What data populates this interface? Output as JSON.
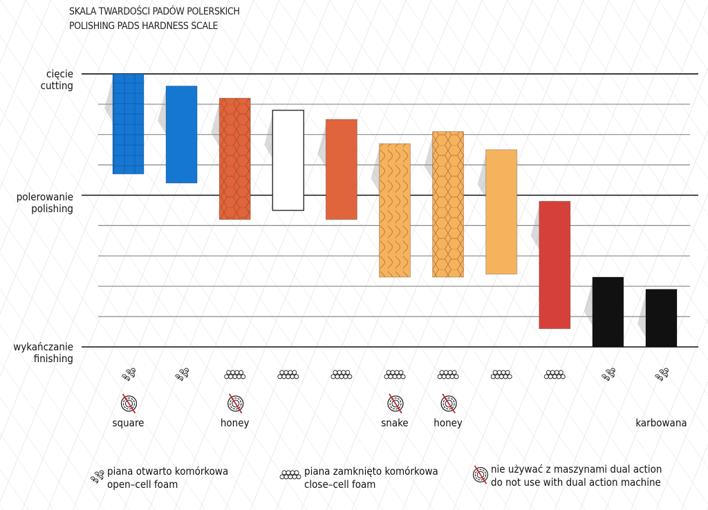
{
  "chart_data": {
    "type": "bar",
    "subtype": "floating-range",
    "title": [
      "SKALA TWARDOŚCI PADÓW  POLERSKICH",
      "POLISHING PADS HARDNESS SCALE"
    ],
    "y_levels": [
      {
        "value": 9,
        "label": [
          "cięcie",
          "cutting"
        ]
      },
      {
        "value": 5,
        "label": [
          "polerowanie",
          "polishing"
        ]
      },
      {
        "value": 0,
        "label": [
          "wykańczanie",
          "finishing"
        ]
      }
    ],
    "ylim": [
      0,
      9
    ],
    "grid": true,
    "grid_step": 1,
    "bars": [
      {
        "top": 9.0,
        "bottom": 5.7,
        "color": "#1677d2",
        "texture": "square",
        "foam": "open-cell",
        "no_dual_action": true,
        "label": "square"
      },
      {
        "top": 8.6,
        "bottom": 5.4,
        "color": "#1677d2",
        "texture": "plain",
        "foam": "open-cell",
        "no_dual_action": false,
        "label": ""
      },
      {
        "top": 8.2,
        "bottom": 4.2,
        "color": "#e0643c",
        "texture": "honey",
        "foam": "close-cell",
        "no_dual_action": true,
        "label": "honey"
      },
      {
        "top": 7.8,
        "bottom": 4.5,
        "color": "#ffffff",
        "texture": "plain",
        "foam": "close-cell",
        "no_dual_action": false,
        "label": ""
      },
      {
        "top": 7.5,
        "bottom": 4.2,
        "color": "#e0643c",
        "texture": "plain",
        "foam": "close-cell",
        "no_dual_action": false,
        "label": ""
      },
      {
        "top": 6.7,
        "bottom": 2.3,
        "color": "#f6b35e",
        "texture": "snake",
        "foam": "close-cell",
        "no_dual_action": true,
        "label": "snake"
      },
      {
        "top": 7.1,
        "bottom": 2.3,
        "color": "#f6b35e",
        "texture": "honey",
        "foam": "close-cell",
        "no_dual_action": true,
        "label": "honey"
      },
      {
        "top": 6.5,
        "bottom": 2.4,
        "color": "#f6b35e",
        "texture": "plain",
        "foam": "close-cell",
        "no_dual_action": false,
        "label": ""
      },
      {
        "top": 4.8,
        "bottom": 0.6,
        "color": "#d6403a",
        "texture": "plain",
        "foam": "close-cell",
        "no_dual_action": false,
        "label": ""
      },
      {
        "top": 2.3,
        "bottom": 0.0,
        "color": "#111111",
        "texture": "plain",
        "foam": "open-cell",
        "no_dual_action": false,
        "label": ""
      },
      {
        "top": 1.9,
        "bottom": 0.0,
        "color": "#111111",
        "texture": "plain",
        "foam": "open-cell",
        "no_dual_action": false,
        "label": "karbowana"
      }
    ],
    "legend": {
      "placement": "bottom",
      "items": [
        {
          "icon": "open-cell-foam-icon",
          "text": [
            "piana otwarto komórkowa",
            "open–cell foam"
          ]
        },
        {
          "icon": "close-cell-foam-icon",
          "text": [
            "piana zamknięto komórkowa",
            "close–cell foam"
          ]
        },
        {
          "icon": "no-dual-action-icon",
          "text": [
            "nie używać z maszynami dual action",
            "do not use with dual action machine"
          ]
        }
      ]
    }
  }
}
